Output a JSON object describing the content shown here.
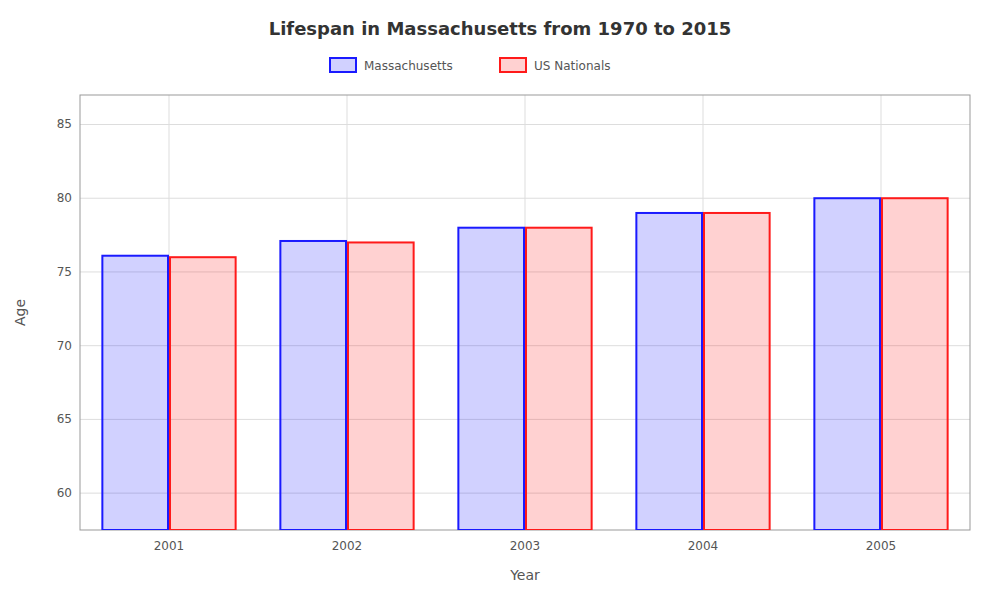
{
  "chart_data": {
    "type": "bar",
    "title": "Lifespan in Massachusetts from 1970 to 2015",
    "x_label": "Year",
    "y_label": "Age",
    "categories": [
      "2001",
      "2002",
      "2003",
      "2004",
      "2005"
    ],
    "series": [
      {
        "name": "Massachusetts",
        "color": "#1a1aff",
        "values": [
          76.1,
          77.1,
          78.0,
          79.0,
          80.0
        ]
      },
      {
        "name": "US Nationals",
        "color": "#ff1a1a",
        "values": [
          76.0,
          77.0,
          78.0,
          79.0,
          80.0
        ]
      }
    ],
    "ylim": [
      57.5,
      87
    ],
    "yticks": [
      60,
      65,
      70,
      75,
      80,
      85
    ],
    "grid": true,
    "legend": "top"
  }
}
